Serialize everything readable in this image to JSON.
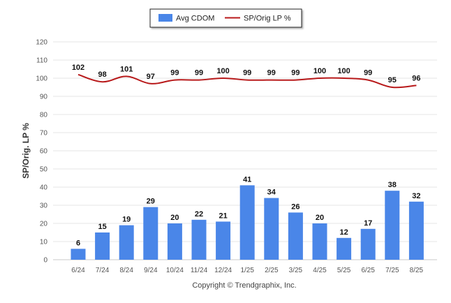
{
  "chart_data": {
    "type": "bar",
    "categories": [
      "6/24",
      "7/24",
      "8/24",
      "9/24",
      "10/24",
      "11/24",
      "12/24",
      "1/25",
      "2/25",
      "3/25",
      "4/25",
      "5/25",
      "6/25",
      "7/25",
      "8/25"
    ],
    "series": [
      {
        "name": "Avg CDOM",
        "type": "bar",
        "color": "#4a86e8",
        "values": [
          6,
          15,
          19,
          29,
          20,
          22,
          21,
          41,
          34,
          26,
          20,
          12,
          17,
          38,
          32
        ]
      },
      {
        "name": "SP/Orig LP %",
        "type": "line",
        "color": "#b8191a",
        "values": [
          102,
          98,
          101,
          97,
          99,
          99,
          100,
          99,
          99,
          99,
          100,
          100,
          99,
          95,
          96
        ]
      }
    ],
    "ylabel": "SP/Orig. LP %",
    "ylim": [
      0,
      120
    ],
    "yticks": [
      "0",
      "10",
      "20",
      "30",
      "40",
      "50",
      "60",
      "70",
      "80",
      "90",
      "100",
      "110",
      "120"
    ],
    "grid": true,
    "legend_position": "top-center"
  },
  "footer": {
    "copyright": "Copyright © Trendgraphix, Inc."
  }
}
